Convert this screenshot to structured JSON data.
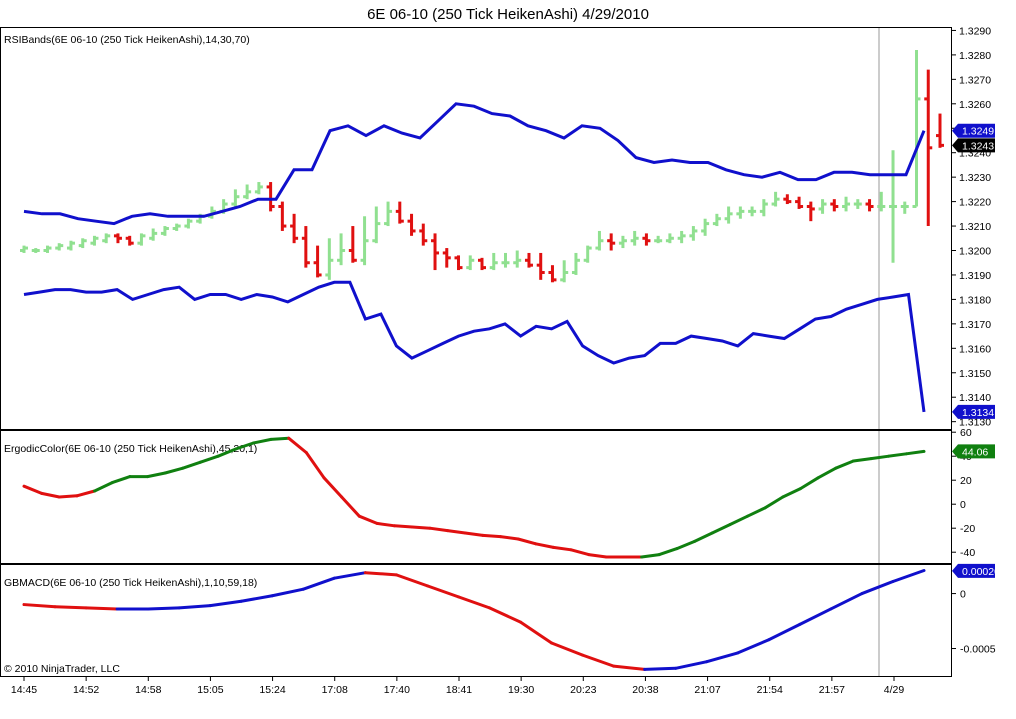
{
  "title": "6E 06-10 (250 Tick HeikenAshi)  4/29/2010",
  "copyright": "© 2010 NinjaTrader, LLC",
  "colors": {
    "up_candle": "#90e090",
    "down_candle": "#e01010",
    "bands": "#1010cc",
    "ergodic_up": "#108010",
    "ergodic_down": "#e01010",
    "macd_up": "#1010cc",
    "macd_down": "#e01010"
  },
  "x_axis": {
    "tick_labels": [
      "14:45",
      "14:52",
      "14:58",
      "15:05",
      "15:24",
      "17:08",
      "17:40",
      "18:41",
      "19:30",
      "20:23",
      "20:38",
      "21:07",
      "21:54",
      "21:57",
      "4/29"
    ]
  },
  "chart_data": [
    {
      "type": "candlestick",
      "label": "RSIBands(6E 06-10 (250 Tick HeikenAshi),14,30,70)",
      "y_ticks": [
        "1.3290",
        "1.3280",
        "1.3270",
        "1.3260",
        "1.3250",
        "1.3240",
        "1.3230",
        "1.3220",
        "1.3210",
        "1.3200",
        "1.3190",
        "1.3180",
        "1.3170",
        "1.3160",
        "1.3150",
        "1.3140",
        "1.3130"
      ],
      "ylim": [
        1.3127,
        1.3291
      ],
      "upper_band": [
        1.3216,
        1.3215,
        1.3215,
        1.3213,
        1.3212,
        1.3211,
        1.3214,
        1.3215,
        1.3214,
        1.3214,
        1.3214,
        1.3216,
        1.3218,
        1.3221,
        1.3221,
        1.3233,
        1.3233,
        1.3249,
        1.3251,
        1.3247,
        1.3251,
        1.3248,
        1.3246,
        1.3253,
        1.326,
        1.3259,
        1.3256,
        1.3255,
        1.3251,
        1.3249,
        1.3246,
        1.3251,
        1.325,
        1.3245,
        1.3238,
        1.3236,
        1.3237,
        1.3236,
        1.3236,
        1.3233,
        1.3231,
        1.323,
        1.3232,
        1.3229,
        1.3229,
        1.3232,
        1.3232,
        1.3231,
        1.3231,
        1.3231,
        1.3249
      ],
      "lower_band": [
        1.3182,
        1.3183,
        1.3184,
        1.3184,
        1.3183,
        1.3183,
        1.3184,
        1.318,
        1.3182,
        1.3184,
        1.3185,
        1.318,
        1.3182,
        1.3182,
        1.318,
        1.3182,
        1.3181,
        1.3179,
        1.3182,
        1.3185,
        1.3187,
        1.3187,
        1.3172,
        1.3174,
        1.3161,
        1.3156,
        1.3159,
        1.3162,
        1.3165,
        1.3167,
        1.3168,
        1.317,
        1.3165,
        1.3169,
        1.3168,
        1.3171,
        1.3161,
        1.3157,
        1.3154,
        1.3156,
        1.3157,
        1.3162,
        1.3162,
        1.3165,
        1.3164,
        1.3163,
        1.3161,
        1.3166,
        1.3165,
        1.3164,
        1.3168,
        1.3172,
        1.3173,
        1.3176,
        1.3178,
        1.318,
        1.3181,
        1.3182,
        1.3134
      ],
      "candles": [
        [
          1.32,
          1.3201,
          1.3199,
          1.3202
        ],
        [
          1.32,
          1.32,
          1.3199,
          1.3201
        ],
        [
          1.32,
          1.3201,
          1.3199,
          1.3202
        ],
        [
          1.3201,
          1.3202,
          1.32,
          1.3203
        ],
        [
          1.3201,
          1.3203,
          1.32,
          1.3204
        ],
        [
          1.3202,
          1.3204,
          1.3201,
          1.3205
        ],
        [
          1.3203,
          1.3205,
          1.3202,
          1.3206
        ],
        [
          1.3204,
          1.3206,
          1.3203,
          1.3207
        ],
        [
          1.3206,
          1.3205,
          1.3203,
          1.3207
        ],
        [
          1.3205,
          1.3203,
          1.3202,
          1.3206
        ],
        [
          1.3203,
          1.3206,
          1.3202,
          1.3207
        ],
        [
          1.3205,
          1.3207,
          1.3204,
          1.3209
        ],
        [
          1.3207,
          1.3209,
          1.3206,
          1.321
        ],
        [
          1.3209,
          1.321,
          1.3208,
          1.3211
        ],
        [
          1.321,
          1.3212,
          1.3209,
          1.3213
        ],
        [
          1.3212,
          1.3214,
          1.3211,
          1.3215
        ],
        [
          1.3214,
          1.3216,
          1.3213,
          1.3218
        ],
        [
          1.3216,
          1.3219,
          1.3215,
          1.3221
        ],
        [
          1.3219,
          1.3222,
          1.3218,
          1.3225
        ],
        [
          1.3222,
          1.3224,
          1.3221,
          1.3227
        ],
        [
          1.3224,
          1.3226,
          1.3223,
          1.3228
        ],
        [
          1.3226,
          1.3218,
          1.3216,
          1.3228
        ],
        [
          1.3218,
          1.321,
          1.3208,
          1.322
        ],
        [
          1.321,
          1.3205,
          1.3203,
          1.3215
        ],
        [
          1.3205,
          1.3195,
          1.3193,
          1.321
        ],
        [
          1.3195,
          1.319,
          1.3189,
          1.3202
        ],
        [
          1.319,
          1.3196,
          1.3188,
          1.3205
        ],
        [
          1.3196,
          1.32,
          1.3194,
          1.3207
        ],
        [
          1.32,
          1.3196,
          1.3195,
          1.321
        ],
        [
          1.3196,
          1.3204,
          1.3194,
          1.3214
        ],
        [
          1.3204,
          1.3211,
          1.3203,
          1.3218
        ],
        [
          1.3211,
          1.3216,
          1.321,
          1.322
        ],
        [
          1.3216,
          1.3212,
          1.3211,
          1.322
        ],
        [
          1.3212,
          1.3208,
          1.3206,
          1.3215
        ],
        [
          1.3208,
          1.3204,
          1.3202,
          1.3211
        ],
        [
          1.3204,
          1.3199,
          1.3192,
          1.3207
        ],
        [
          1.3199,
          1.3197,
          1.3193,
          1.3201
        ],
        [
          1.3197,
          1.3193,
          1.3192,
          1.3198
        ],
        [
          1.3193,
          1.3196,
          1.3192,
          1.3198
        ],
        [
          1.3196,
          1.3193,
          1.3192,
          1.3197
        ],
        [
          1.3193,
          1.3195,
          1.3192,
          1.3199
        ],
        [
          1.3195,
          1.3195,
          1.3193,
          1.3199
        ],
        [
          1.3195,
          1.3196,
          1.3193,
          1.32
        ],
        [
          1.3196,
          1.3194,
          1.3193,
          1.3199
        ],
        [
          1.3194,
          1.3191,
          1.3188,
          1.3199
        ],
        [
          1.3191,
          1.3188,
          1.3187,
          1.3194
        ],
        [
          1.3188,
          1.3191,
          1.3187,
          1.3196
        ],
        [
          1.3191,
          1.3196,
          1.319,
          1.3199
        ],
        [
          1.3196,
          1.3201,
          1.3195,
          1.3202
        ],
        [
          1.3201,
          1.3204,
          1.32,
          1.3208
        ],
        [
          1.3204,
          1.3203,
          1.32,
          1.3207
        ],
        [
          1.3203,
          1.3204,
          1.3201,
          1.3206
        ],
        [
          1.3204,
          1.3205,
          1.3202,
          1.3208
        ],
        [
          1.3205,
          1.3204,
          1.3202,
          1.3207
        ],
        [
          1.3204,
          1.3204,
          1.3203,
          1.3206
        ],
        [
          1.3204,
          1.3205,
          1.3203,
          1.3207
        ],
        [
          1.3205,
          1.3206,
          1.3203,
          1.3208
        ],
        [
          1.3206,
          1.3208,
          1.3204,
          1.321
        ],
        [
          1.3208,
          1.3211,
          1.3206,
          1.3213
        ],
        [
          1.3211,
          1.3213,
          1.321,
          1.3215
        ],
        [
          1.3213,
          1.3215,
          1.3211,
          1.3218
        ],
        [
          1.3215,
          1.3216,
          1.3213,
          1.3218
        ],
        [
          1.3216,
          1.3216,
          1.3214,
          1.3218
        ],
        [
          1.3216,
          1.3219,
          1.3214,
          1.3221
        ],
        [
          1.3219,
          1.3221,
          1.3218,
          1.3224
        ],
        [
          1.3221,
          1.322,
          1.3219,
          1.3223
        ],
        [
          1.322,
          1.3218,
          1.3217,
          1.3222
        ],
        [
          1.3218,
          1.3217,
          1.3212,
          1.322
        ],
        [
          1.3217,
          1.3219,
          1.3215,
          1.3221
        ],
        [
          1.3219,
          1.3218,
          1.3216,
          1.3221
        ],
        [
          1.3218,
          1.3219,
          1.3216,
          1.3222
        ],
        [
          1.3219,
          1.3219,
          1.3217,
          1.3221
        ],
        [
          1.3219,
          1.3218,
          1.3216,
          1.3221
        ],
        [
          1.3218,
          1.3218,
          1.3216,
          1.3224
        ],
        [
          1.3218,
          1.3218,
          1.3195,
          1.3241
        ],
        [
          1.3218,
          1.3218,
          1.3215,
          1.322
        ],
        [
          1.3218,
          1.3262,
          1.3218,
          1.3282
        ],
        [
          1.3262,
          1.3242,
          1.321,
          1.3274
        ],
        [
          1.3247,
          1.3243,
          1.3242,
          1.3256
        ]
      ],
      "last_values": {
        "upper": "1.3249",
        "close": "1.3243",
        "lower": "1.3134"
      }
    },
    {
      "type": "line",
      "label": "ErgodicColor(6E 06-10 (250 Tick HeikenAshi),45,20,1)",
      "y_ticks": [
        "60",
        "40",
        "20",
        "0",
        "-20",
        "-40"
      ],
      "ylim": [
        -49,
        61
      ],
      "values": [
        15,
        9,
        6,
        7,
        11,
        18,
        23,
        23,
        26,
        30,
        35,
        40,
        46,
        51,
        54,
        55,
        43,
        22,
        6,
        -10,
        -16,
        -18,
        -19,
        -20,
        -22,
        -24,
        -26,
        -27,
        -29,
        -33,
        -36,
        -38,
        -42,
        -44,
        -44,
        -44,
        -42,
        -37,
        -31,
        -24,
        -17,
        -10,
        -3,
        6,
        13,
        22,
        30,
        36,
        38,
        40,
        42,
        44
      ],
      "down_color_ranges": [
        [
          0,
          4
        ],
        [
          15,
          35
        ]
      ],
      "last_value": "44.06"
    },
    {
      "type": "line",
      "label": "GBMACD(6E 06-10 (250 Tick HeikenAshi),1,10,59,18)",
      "y_ticks": [
        "0",
        "-0.0005"
      ],
      "ylim": [
        -0.00075,
        0.00026
      ],
      "values": [
        -0.0001,
        -0.00012,
        -0.00013,
        -0.00014,
        -0.00014,
        -0.00013,
        -0.00011,
        -7e-05,
        -2e-05,
        4e-05,
        0.00014,
        0.00019,
        0.00017,
        7e-05,
        -3e-05,
        -0.00013,
        -0.00026,
        -0.00045,
        -0.00056,
        -0.00066,
        -0.00069,
        -0.00068,
        -0.00062,
        -0.00054,
        -0.00042,
        -0.00028,
        -0.00014,
        0.0,
        0.00011,
        0.00021
      ],
      "down_color_ranges": [
        [
          0,
          3
        ],
        [
          11,
          20
        ]
      ],
      "last_value": "0.000207"
    }
  ]
}
